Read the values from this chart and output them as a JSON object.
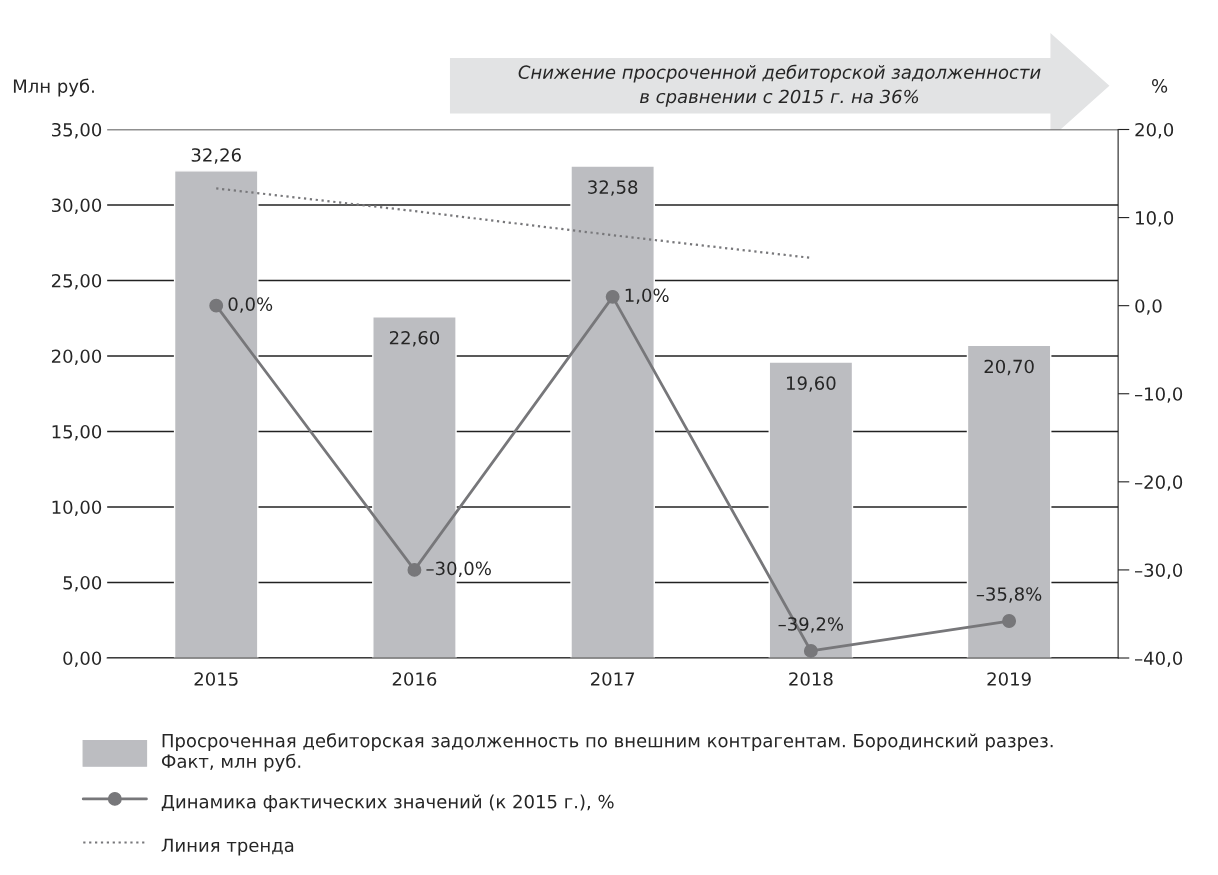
{
  "chart_data": {
    "type": "bar",
    "categories": [
      "2015",
      "2016",
      "2017",
      "2018",
      "2019"
    ],
    "ylabel": "Млн руб.",
    "y2label": "%",
    "ylim": [
      0,
      35
    ],
    "yticks": [
      {
        "value": 0,
        "label": "0,00"
      },
      {
        "value": 5,
        "label": "5,00"
      },
      {
        "value": 10,
        "label": "10,00"
      },
      {
        "value": 15,
        "label": "15,00"
      },
      {
        "value": 20,
        "label": "20,00"
      },
      {
        "value": 25,
        "label": "25,00"
      },
      {
        "value": 30,
        "label": "30,00"
      },
      {
        "value": 35,
        "label": "35,00"
      }
    ],
    "y2lim": [
      -40,
      20
    ],
    "y2ticks": [
      {
        "value": -40,
        "label": "–40,0"
      },
      {
        "value": -30,
        "label": "–30,0"
      },
      {
        "value": -20,
        "label": "–20,0"
      },
      {
        "value": -10,
        "label": "–10,0"
      },
      {
        "value": 0,
        "label": "0,0"
      },
      {
        "value": 10,
        "label": "10,0"
      },
      {
        "value": 20,
        "label": "20,0"
      }
    ],
    "grid": "y",
    "legend": "bottom",
    "series": [
      {
        "name": "Просроченная дебиторская задолженность по внешним контрагентам. Бородинский разрез.\nФакт, млн руб.",
        "color": "#bcbdc1",
        "values": [
          32.26,
          22.6,
          32.58,
          19.6,
          20.7
        ],
        "value_labels": [
          "32,26",
          "22,60",
          "32,58",
          "19,60",
          "20,70"
        ]
      },
      {
        "type": "line",
        "axis": "y2",
        "name": "Динамика фактических значений (к 2015 г.), %",
        "color": "#77777a",
        "marker": "circle",
        "line_style": "solid",
        "values": [
          0.0,
          -30.0,
          1.0,
          -39.2,
          -35.8
        ],
        "value_labels": [
          "0,0%",
          "–30,0%",
          "1,0%",
          "–39,2%",
          "–35,8%"
        ]
      },
      {
        "type": "line",
        "name": "Линия тренда",
        "color": "#77777a",
        "marker": "none",
        "line_style": "dotted",
        "values": [
          31.1,
          29.6,
          28.0,
          26.5,
          null
        ]
      }
    ],
    "annotations": [
      "Снижение просроченной дебиторской задолженности\nв сравнении с 2015 г. на 36%"
    ]
  }
}
